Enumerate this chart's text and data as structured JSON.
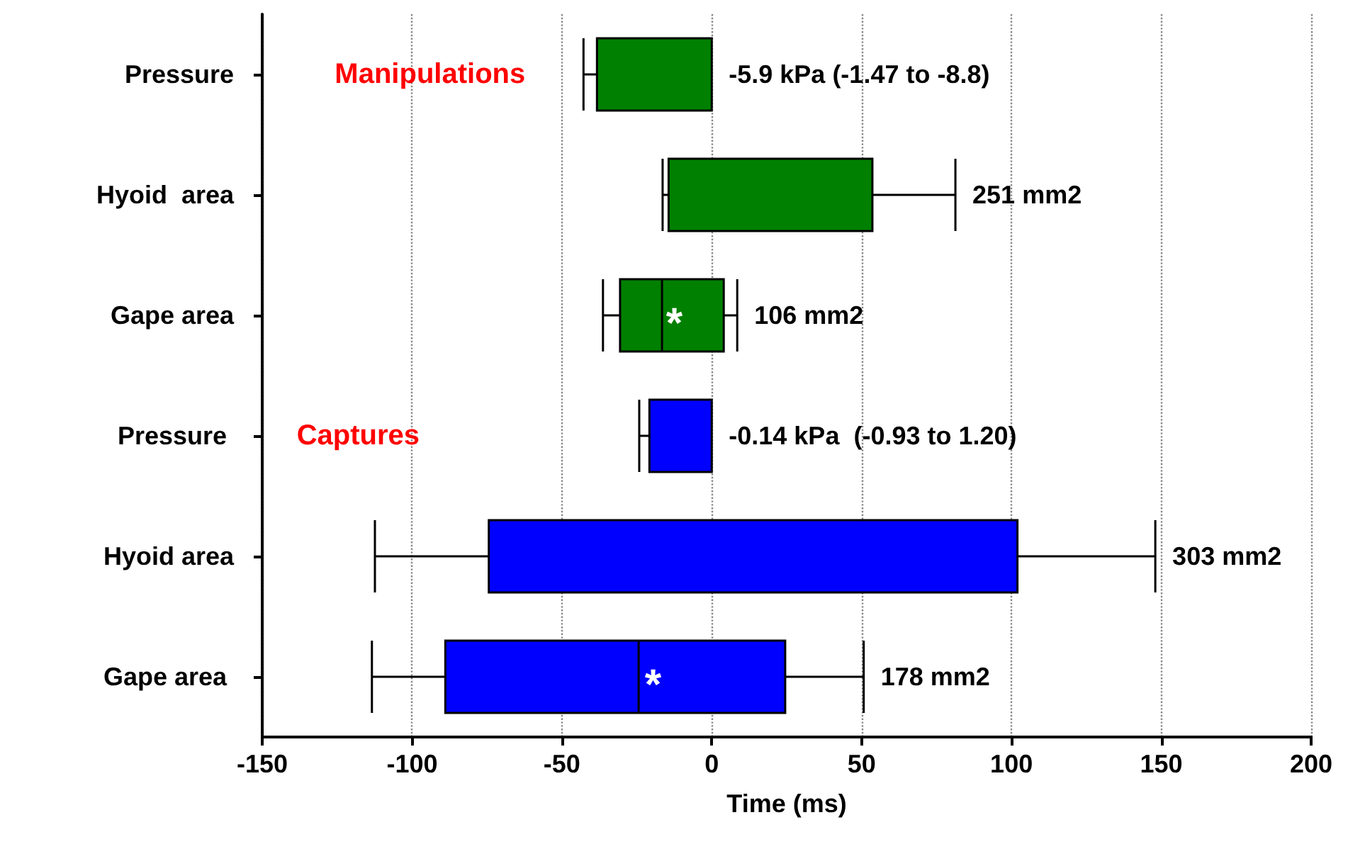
{
  "chart_data": {
    "type": "box",
    "orientation": "horizontal",
    "xlabel": "Time (ms)",
    "categories": [
      "Pressure",
      "Hyoid  area",
      "Gape area",
      "Pressure ",
      "Hyoid area",
      "Gape area "
    ],
    "boxes": [
      {
        "low": -42.8,
        "q1": -38.3,
        "median": 0,
        "q3": 0,
        "high": 0
      },
      {
        "low": -16.4,
        "q1": -14.4,
        "median": -14.4,
        "q3": 53.6,
        "high": 81.3
      },
      {
        "low": -36.3,
        "q1": -30.6,
        "median": -16.6,
        "q3": 4,
        "high": 8.5
      },
      {
        "low": -24.2,
        "q1": -20.8,
        "median": 0,
        "q3": 0,
        "high": 0
      },
      {
        "low": -112.4,
        "q1": -74.4,
        "median": -74.4,
        "q3": 102,
        "high": 148
      },
      {
        "low": -113.4,
        "q1": -88.9,
        "median": -24.4,
        "q3": 24.5,
        "high": 50.7
      }
    ],
    "colors": [
      "#008000",
      "#008000",
      "#008000",
      "#0000ff",
      "#0000ff",
      "#0000ff"
    ],
    "value_labels": [
      "-5.9 kPa (-1.47 to -8.8)",
      "251 mm2",
      "106 mm2",
      "-0.14 kPa  (-0.93 to 1.20)",
      "303 mm2",
      "178 mm2"
    ],
    "xlim": [
      -150,
      200
    ],
    "xticks": [
      -150,
      -100,
      -50,
      0,
      50,
      100,
      150,
      200
    ],
    "grid": "x",
    "annotations": [
      "Manipulations",
      "Captures",
      "*",
      "*"
    ]
  }
}
